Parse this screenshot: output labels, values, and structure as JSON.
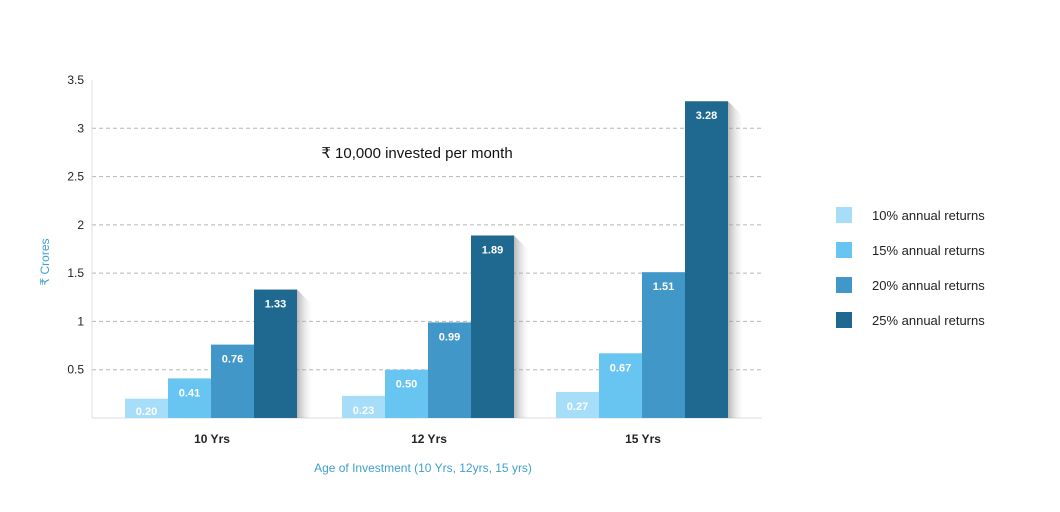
{
  "chart_data": {
    "type": "bar",
    "annotation": "₹ 10,000 invested per month",
    "xlabel": "Age of Investment (10 Yrs, 12yrs, 15 yrs)",
    "ylabel": "₹ Crores",
    "ylim": [
      0,
      3.5
    ],
    "yticks": [
      "0.5",
      "1",
      "1.5",
      "2",
      "2.5",
      "3",
      "3.5"
    ],
    "categories": [
      "10 Yrs",
      "12 Yrs",
      "15 Yrs"
    ],
    "grid": true,
    "legend_position": "right",
    "series": [
      {
        "name": "10% annual returns",
        "color": "#a6defa",
        "values": [
          0.2,
          0.23,
          0.27
        ],
        "labels": [
          "0.20",
          "0.23",
          "0.27"
        ]
      },
      {
        "name": "15% annual returns",
        "color": "#68c4f1",
        "values": [
          0.41,
          0.5,
          0.67
        ],
        "labels": [
          "0.41",
          "0.50",
          "0.67"
        ]
      },
      {
        "name": "20% annual returns",
        "color": "#4197c8",
        "values": [
          0.76,
          0.99,
          1.51
        ],
        "labels": [
          "0.76",
          "0.99",
          "1.51"
        ]
      },
      {
        "name": "25% annual returns",
        "color": "#1f6890",
        "values": [
          1.33,
          1.89,
          3.28
        ],
        "labels": [
          "1.33",
          "1.89",
          "3.28"
        ]
      }
    ]
  }
}
